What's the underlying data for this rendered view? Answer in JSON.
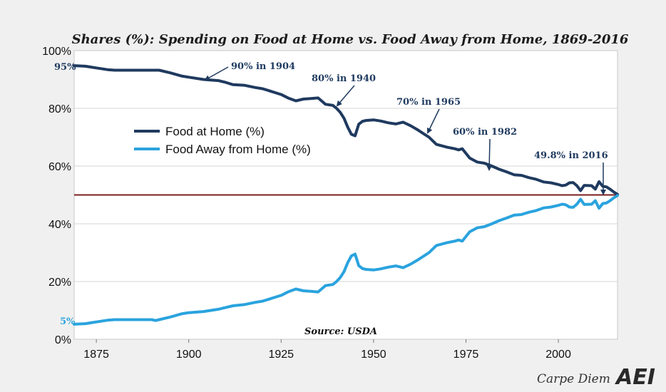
{
  "chart_data": {
    "type": "line",
    "title": "Shares (%): Spending on Food at Home vs. Food Away from Home, 1869-2016",
    "xlabel": "",
    "ylabel": "",
    "xlim": [
      1869,
      2016
    ],
    "ylim": [
      0,
      100
    ],
    "x_ticks": [
      1875,
      1900,
      1925,
      1950,
      1975,
      2000
    ],
    "x_tick_labels": [
      "1875",
      "1900",
      "1925",
      "1950",
      "1975",
      "2000"
    ],
    "y_ticks": [
      0,
      20,
      40,
      60,
      80,
      100
    ],
    "y_tick_labels": [
      "0%",
      "20%",
      "40%",
      "60%",
      "80%",
      "100%"
    ],
    "grid": true,
    "legend_position": "upper-left",
    "reference_line": {
      "y": 50,
      "color": "#7b1c1c"
    },
    "series": [
      {
        "name": "Food at Home (%)",
        "color": "#1f3a5f",
        "points": [
          [
            1869,
            94.8
          ],
          [
            1872,
            94.6
          ],
          [
            1875,
            94.0
          ],
          [
            1878,
            93.4
          ],
          [
            1880,
            93.2
          ],
          [
            1885,
            93.2
          ],
          [
            1890,
            93.2
          ],
          [
            1892,
            93.2
          ],
          [
            1895,
            92.3
          ],
          [
            1898,
            91.2
          ],
          [
            1900,
            90.8
          ],
          [
            1904,
            90.0
          ],
          [
            1908,
            89.6
          ],
          [
            1910,
            89.0
          ],
          [
            1912,
            88.2
          ],
          [
            1915,
            88.0
          ],
          [
            1918,
            87.2
          ],
          [
            1920,
            86.8
          ],
          [
            1922,
            86.0
          ],
          [
            1925,
            84.8
          ],
          [
            1927,
            83.5
          ],
          [
            1929,
            82.6
          ],
          [
            1931,
            83.2
          ],
          [
            1933,
            83.4
          ],
          [
            1935,
            83.6
          ],
          [
            1936,
            82.5
          ],
          [
            1937,
            81.4
          ],
          [
            1939,
            81.0
          ],
          [
            1940,
            80.0
          ],
          [
            1941,
            78.6
          ],
          [
            1942,
            76.6
          ],
          [
            1943,
            73.5
          ],
          [
            1944,
            71.0
          ],
          [
            1945,
            70.5
          ],
          [
            1946,
            74.5
          ],
          [
            1947,
            75.5
          ],
          [
            1948,
            75.8
          ],
          [
            1950,
            76.0
          ],
          [
            1952,
            75.6
          ],
          [
            1954,
            75.0
          ],
          [
            1956,
            74.6
          ],
          [
            1958,
            75.2
          ],
          [
            1960,
            74.0
          ],
          [
            1962,
            72.5
          ],
          [
            1965,
            70.0
          ],
          [
            1967,
            67.5
          ],
          [
            1970,
            66.5
          ],
          [
            1972,
            66.0
          ],
          [
            1973,
            65.6
          ],
          [
            1974,
            66.0
          ],
          [
            1976,
            62.8
          ],
          [
            1978,
            61.4
          ],
          [
            1980,
            61.0
          ],
          [
            1982,
            60.0
          ],
          [
            1984,
            58.9
          ],
          [
            1986,
            58.0
          ],
          [
            1988,
            57.0
          ],
          [
            1990,
            56.8
          ],
          [
            1992,
            56.0
          ],
          [
            1994,
            55.4
          ],
          [
            1996,
            54.5
          ],
          [
            1998,
            54.2
          ],
          [
            2000,
            53.6
          ],
          [
            2001,
            53.2
          ],
          [
            2002,
            53.4
          ],
          [
            2003,
            54.2
          ],
          [
            2004,
            54.3
          ],
          [
            2005,
            53.2
          ],
          [
            2006,
            51.5
          ],
          [
            2007,
            53.3
          ],
          [
            2009,
            53.2
          ],
          [
            2010,
            52.0
          ],
          [
            2011,
            54.6
          ],
          [
            2012,
            53.0
          ],
          [
            2013,
            52.8
          ],
          [
            2014,
            52.0
          ],
          [
            2015,
            51.0
          ],
          [
            2016,
            50.2
          ]
        ]
      },
      {
        "name": "Food Away from Home (%)",
        "color": "#2aa3de",
        "points": [
          [
            1869,
            5.2
          ],
          [
            1872,
            5.4
          ],
          [
            1875,
            6.0
          ],
          [
            1878,
            6.6
          ],
          [
            1880,
            6.8
          ],
          [
            1885,
            6.8
          ],
          [
            1890,
            6.8
          ],
          [
            1891,
            6.5
          ],
          [
            1892,
            6.8
          ],
          [
            1895,
            7.7
          ],
          [
            1898,
            8.8
          ],
          [
            1900,
            9.2
          ],
          [
            1904,
            9.6
          ],
          [
            1908,
            10.4
          ],
          [
            1910,
            11.0
          ],
          [
            1912,
            11.6
          ],
          [
            1915,
            12.0
          ],
          [
            1918,
            12.8
          ],
          [
            1920,
            13.2
          ],
          [
            1922,
            14.0
          ],
          [
            1925,
            15.2
          ],
          [
            1927,
            16.5
          ],
          [
            1929,
            17.4
          ],
          [
            1931,
            16.8
          ],
          [
            1933,
            16.6
          ],
          [
            1935,
            16.4
          ],
          [
            1936,
            17.5
          ],
          [
            1937,
            18.6
          ],
          [
            1939,
            19.0
          ],
          [
            1940,
            20.0
          ],
          [
            1941,
            21.4
          ],
          [
            1942,
            23.4
          ],
          [
            1943,
            26.5
          ],
          [
            1944,
            28.9
          ],
          [
            1945,
            29.5
          ],
          [
            1946,
            25.5
          ],
          [
            1947,
            24.5
          ],
          [
            1948,
            24.2
          ],
          [
            1950,
            24.0
          ],
          [
            1952,
            24.4
          ],
          [
            1954,
            25.0
          ],
          [
            1956,
            25.4
          ],
          [
            1958,
            24.8
          ],
          [
            1960,
            26.0
          ],
          [
            1962,
            27.5
          ],
          [
            1965,
            30.0
          ],
          [
            1967,
            32.5
          ],
          [
            1970,
            33.5
          ],
          [
            1972,
            34.0
          ],
          [
            1973,
            34.4
          ],
          [
            1974,
            34.0
          ],
          [
            1976,
            37.2
          ],
          [
            1978,
            38.6
          ],
          [
            1980,
            39.0
          ],
          [
            1982,
            40.0
          ],
          [
            1984,
            41.1
          ],
          [
            1986,
            42.0
          ],
          [
            1988,
            43.0
          ],
          [
            1990,
            43.2
          ],
          [
            1992,
            44.0
          ],
          [
            1994,
            44.6
          ],
          [
            1996,
            45.5
          ],
          [
            1998,
            45.8
          ],
          [
            2000,
            46.4
          ],
          [
            2001,
            46.8
          ],
          [
            2002,
            46.6
          ],
          [
            2003,
            45.8
          ],
          [
            2004,
            45.7
          ],
          [
            2005,
            46.8
          ],
          [
            2006,
            48.5
          ],
          [
            2007,
            46.7
          ],
          [
            2009,
            46.8
          ],
          [
            2010,
            48.0
          ],
          [
            2011,
            45.4
          ],
          [
            2012,
            47.0
          ],
          [
            2013,
            47.2
          ],
          [
            2014,
            48.0
          ],
          [
            2015,
            49.0
          ],
          [
            2016,
            49.8
          ]
        ]
      }
    ],
    "annotations": [
      {
        "text": "90% in 1904",
        "x": 1904,
        "y": 90
      },
      {
        "text": "80% in 1940",
        "x": 1940,
        "y": 80
      },
      {
        "text": "70% in 1965",
        "x": 1965,
        "y": 70
      },
      {
        "text": "60% in 1982",
        "x": 1982,
        "y": 60
      },
      {
        "text": "49.8% in 2016",
        "x": 2016,
        "y": 49.8
      }
    ],
    "start_labels": {
      "home": "95%",
      "away": "5%"
    },
    "source": "Source: USDA"
  },
  "branding": {
    "blog": "Carpe Diem",
    "logo": "AEI"
  }
}
